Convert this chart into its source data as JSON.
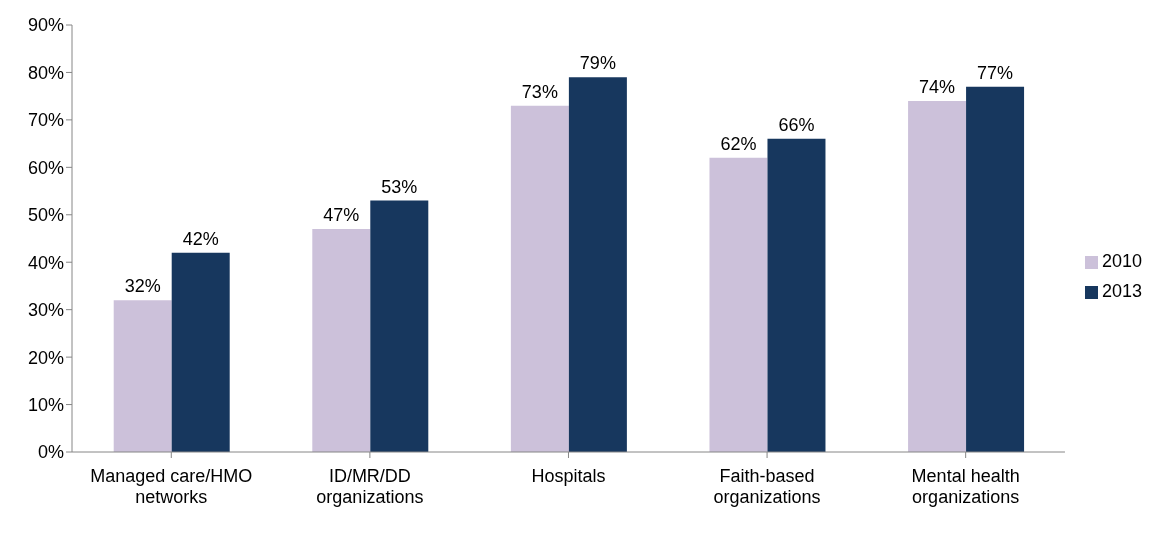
{
  "chart_data": {
    "type": "bar",
    "categories": [
      "Managed care/HMO networks",
      "ID/MR/DD organizations",
      "Hospitals",
      "Faith-based organizations",
      "Mental health organizations"
    ],
    "series": [
      {
        "name": "2010",
        "color": "#ccc1da",
        "values": [
          32,
          47,
          73,
          62,
          74
        ],
        "value_labels": [
          "32%",
          "47%",
          "73%",
          "62%",
          "74%"
        ]
      },
      {
        "name": "2013",
        "color": "#17375e",
        "values": [
          42,
          53,
          79,
          66,
          77
        ],
        "value_labels": [
          "42%",
          "53%",
          "79%",
          "66%",
          "77%"
        ]
      }
    ],
    "ylim": [
      0,
      90
    ],
    "yticks": [
      {
        "value": 0,
        "label": "0%"
      },
      {
        "value": 10,
        "label": "10%"
      },
      {
        "value": 20,
        "label": "20%"
      },
      {
        "value": 30,
        "label": "30%"
      },
      {
        "value": 40,
        "label": "40%"
      },
      {
        "value": 50,
        "label": "50%"
      },
      {
        "value": 60,
        "label": "60%"
      },
      {
        "value": 70,
        "label": "70%"
      },
      {
        "value": 80,
        "label": "80%"
      },
      {
        "value": 90,
        "label": "90%"
      }
    ],
    "grid": false,
    "legend": "right"
  }
}
